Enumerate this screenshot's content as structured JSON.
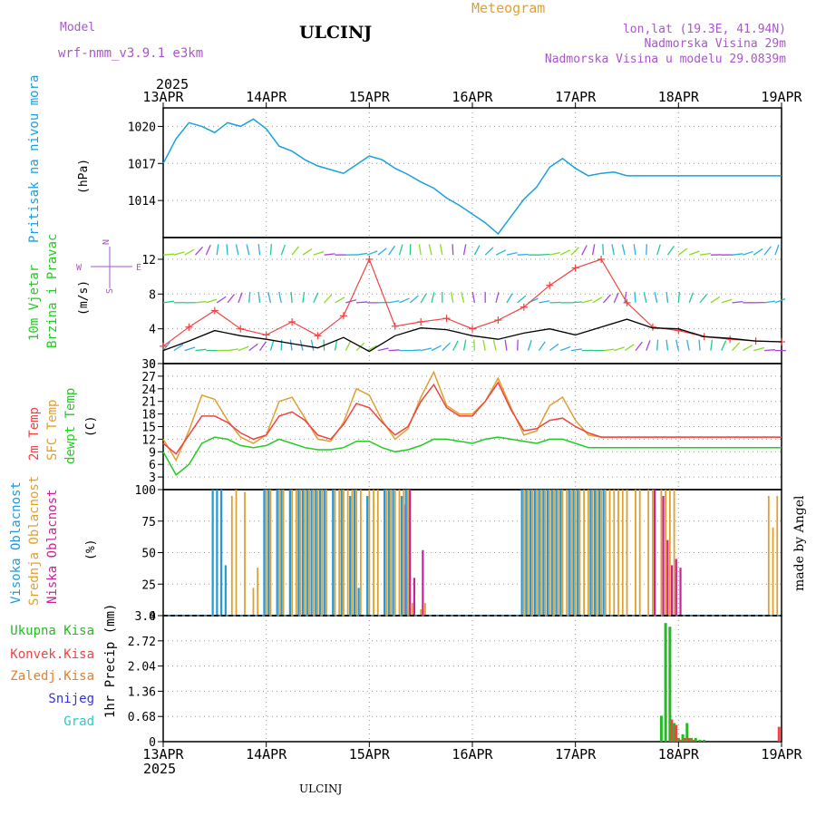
{
  "header": {
    "model_label": "Model",
    "model_name": "wrf-nmm_v3.9.1 e3km",
    "station": "ULCINJ",
    "meteogram": "Meteogram",
    "lonlat": "lon,lat (19.3E, 41.94N)",
    "elevation": "Nadmorska Visina 29m",
    "model_elevation": "Nadmorska Visina u modelu 29.0839m",
    "year_top": "2025",
    "year_bottom": "2025",
    "footer_station": "ULCINJ",
    "watermark": "made by Angel"
  },
  "colors": {
    "pressure": "#1aa0e0",
    "wind_speed": "#000000",
    "wind_gust": "#ee4444",
    "temp2m": "#ee4444",
    "sfc_temp": "#e0a030",
    "dewpt": "#22cc22",
    "cloud_high": "#2299dd",
    "cloud_mid": "#e0a030",
    "cloud_low": "#cc2299",
    "precip_total": "#22bb22",
    "precip_conv": "#ee4444",
    "precip_frz": "#e08030",
    "snow": "#3333dd",
    "hail": "#22cccc",
    "label_purple": "#aa55cc",
    "label_orange": "#e0a030"
  },
  "x_dates": [
    "13APR",
    "14APR",
    "15APR",
    "16APR",
    "17APR",
    "18APR",
    "19APR"
  ],
  "panel_labels": {
    "pressure": [
      "Pritisak na nivou mora"
    ],
    "pressure_unit": "(hPa)",
    "wind": [
      "10m Vjetar",
      "Brzina i Pravac"
    ],
    "wind_unit": "(m/s)",
    "compass": "N",
    "compass_w": "W",
    "compass_e": "E",
    "compass_s": "S",
    "temp": [
      "2m Temp",
      "SFC Temp",
      "dewpt Temp"
    ],
    "temp_unit": "(C)",
    "cloud": [
      "Visoka Oblacnost",
      "Srednja Oblacnost",
      "Niska Oblacnost"
    ],
    "cloud_unit": "(%)",
    "precip_unit": "1hr Precip (mm)",
    "precip_legend": [
      "Ukupna Kisa",
      "Konvek.Kisa",
      "Zaledj.Kisa",
      "Snijeg",
      "Grad"
    ]
  },
  "chart_data": [
    {
      "type": "line",
      "name": "pressure",
      "x": [
        0,
        3,
        6,
        9,
        12,
        15,
        18,
        21,
        24,
        27,
        30,
        33,
        36,
        39,
        42,
        45,
        48,
        51,
        54,
        57,
        60,
        63,
        66,
        69,
        72,
        75,
        78,
        81,
        84,
        87,
        90,
        93,
        96,
        99,
        102,
        105,
        108,
        111,
        114,
        117,
        120,
        123,
        126,
        129,
        132,
        135,
        138,
        141,
        144
      ],
      "series": [
        {
          "name": "Pritisak na nivou mora",
          "values": [
            1017,
            1019,
            1020.3,
            1020,
            1019.5,
            1020.3,
            1020,
            1020.6,
            1019.8,
            1018.4,
            1018,
            1017.3,
            1016.8,
            1016.5,
            1016.2,
            1016.9,
            1017.6,
            1017.3,
            1016.6,
            1016.1,
            1015.5,
            1015,
            1014.2,
            1013.6,
            1012.9,
            1012.2,
            1011.3,
            1012.7,
            1014.1,
            1015.1,
            1016.7,
            1017.4,
            1016.6,
            1016.0,
            1016.2,
            1016.3,
            1016.0,
            1016.0,
            1016.0,
            1016.0,
            1016.0,
            1016.0,
            1016.0,
            1016.0,
            1016.0,
            1016.0,
            1016.0,
            1016.0,
            1016.0
          ]
        }
      ],
      "yticks": [
        1014,
        1017,
        1020
      ],
      "ylim": [
        1011,
        1021.5
      ],
      "ylabel": "(hPa)"
    },
    {
      "type": "line",
      "name": "wind",
      "x": [
        0,
        6,
        12,
        18,
        24,
        30,
        36,
        42,
        48,
        54,
        60,
        66,
        72,
        78,
        84,
        90,
        96,
        102,
        108,
        114,
        120,
        126,
        132,
        138,
        144
      ],
      "series": [
        {
          "name": "speed",
          "values": [
            1.5,
            2.6,
            3.8,
            3.2,
            2.8,
            2.3,
            1.8,
            3.0,
            1.4,
            3.2,
            4.1,
            3.9,
            3.2,
            2.8,
            3.5,
            4.0,
            3.3,
            4.2,
            5.1,
            4.1,
            4.0,
            3.1,
            2.9,
            2.6,
            2.5
          ]
        },
        {
          "name": "gust",
          "values": [
            2.0,
            4.2,
            6.1,
            4.0,
            3.3,
            4.8,
            3.2,
            5.5,
            12.0,
            4.3,
            4.8,
            5.2,
            4.0,
            5.0,
            6.5,
            9.0,
            11.0,
            12.0,
            7.0,
            4.2,
            3.8,
            3.1,
            2.8,
            2.6,
            2.5
          ]
        }
      ],
      "yticks": [
        0,
        4,
        8,
        12
      ],
      "ylim": [
        0,
        14.5
      ],
      "ylabel": "(m/s)"
    },
    {
      "type": "line",
      "name": "temperature",
      "x": [
        0,
        3,
        6,
        9,
        12,
        15,
        18,
        21,
        24,
        27,
        30,
        33,
        36,
        39,
        42,
        45,
        48,
        51,
        54,
        57,
        60,
        63,
        66,
        69,
        72,
        75,
        78,
        81,
        84,
        87,
        90,
        93,
        96,
        99,
        102,
        105,
        108,
        111,
        114,
        117,
        120,
        123,
        126,
        129,
        132,
        135,
        138,
        141,
        144
      ],
      "series": [
        {
          "name": "2m Temp",
          "values": [
            11,
            8.5,
            13,
            17.5,
            17.5,
            16,
            13.5,
            12,
            13,
            17.5,
            18.5,
            16.5,
            13,
            12,
            15.5,
            20.5,
            19.5,
            16,
            13,
            15,
            21,
            25,
            19.5,
            17.5,
            17.5,
            21,
            25.5,
            19,
            14,
            14.5,
            16.5,
            17,
            15,
            13.5,
            12.5,
            12.5,
            12.5,
            12.5,
            12.5,
            12.5,
            12.5,
            12.5,
            12.5,
            12.5,
            12.5,
            12.5,
            12.5,
            12.5,
            12.5
          ]
        },
        {
          "name": "SFC Temp",
          "values": [
            12,
            7,
            14,
            22.5,
            21.5,
            16.5,
            12.5,
            11,
            13,
            21,
            22,
            17,
            12,
            11.5,
            16,
            24,
            22.5,
            16.5,
            12,
            14.5,
            22,
            28,
            20,
            18,
            18,
            21,
            26.5,
            19.5,
            13,
            14,
            20,
            22,
            16.5,
            13,
            12.5,
            12.5,
            12.5,
            12.5,
            12.5,
            12.5,
            12.5,
            12.5,
            12.5,
            12.5,
            12.5,
            12.5,
            12.5,
            12.5,
            12.5
          ]
        },
        {
          "name": "dewpt Temp",
          "values": [
            9,
            3.5,
            6,
            11,
            12.5,
            12,
            10.5,
            10,
            10.5,
            12,
            11,
            10,
            9.5,
            9.5,
            10,
            11.5,
            11.5,
            10,
            9,
            9.5,
            10.5,
            12,
            12,
            11.5,
            11,
            12,
            12.5,
            12,
            11.5,
            11,
            12,
            12,
            11,
            10,
            10,
            10,
            10,
            10,
            10,
            10,
            10,
            10,
            10,
            10,
            10,
            10,
            10,
            10,
            10
          ]
        }
      ],
      "yticks": [
        3,
        6,
        9,
        12,
        15,
        18,
        21,
        24,
        27,
        30
      ],
      "ylim": [
        0,
        30
      ],
      "ylabel": "(C)"
    },
    {
      "type": "bar",
      "name": "cloud",
      "x_hours": [
        12,
        13,
        14,
        15,
        16,
        17,
        19,
        21,
        22,
        23,
        24,
        25,
        27,
        28,
        30,
        31,
        32,
        33,
        34,
        35,
        36,
        37,
        38,
        40,
        41,
        42,
        43,
        44,
        45,
        46,
        48,
        49,
        50,
        52,
        53,
        54,
        55,
        56,
        57,
        58,
        60,
        61,
        65,
        69,
        84,
        85,
        86,
        87,
        88,
        89,
        90,
        91,
        92,
        93,
        94,
        95,
        96,
        97,
        98,
        99,
        100,
        101,
        102,
        103,
        104,
        105,
        106,
        107,
        108,
        110,
        111,
        113,
        114,
        116,
        117,
        118,
        119,
        120,
        122,
        125,
        141,
        142,
        143
      ],
      "series": [
        {
          "name": "Visoka Oblacnost",
          "values": [
            100,
            100,
            100,
            40,
            0,
            0,
            0,
            0,
            0,
            0,
            100,
            100,
            100,
            100,
            100,
            0,
            100,
            100,
            100,
            100,
            100,
            100,
            100,
            100,
            0,
            100,
            0,
            95,
            100,
            22,
            95,
            0,
            0,
            100,
            100,
            100,
            0,
            95,
            100,
            0,
            0,
            0,
            0,
            0,
            100,
            100,
            100,
            100,
            100,
            100,
            100,
            100,
            100,
            100,
            0,
            100,
            100,
            100,
            0,
            0,
            100,
            100,
            100,
            100,
            0,
            0,
            0,
            0,
            0,
            0,
            0,
            0,
            0,
            0,
            0,
            0,
            0,
            0,
            0,
            0,
            0,
            0,
            0
          ]
        },
        {
          "name": "Srednja Oblacnost",
          "values": [
            0,
            0,
            0,
            0,
            95,
            100,
            98,
            22,
            38,
            0,
            100,
            100,
            100,
            100,
            100,
            100,
            100,
            100,
            100,
            100,
            100,
            100,
            100,
            100,
            100,
            100,
            100,
            100,
            100,
            100,
            100,
            100,
            100,
            100,
            100,
            100,
            100,
            100,
            100,
            10,
            5,
            10,
            0,
            0,
            100,
            100,
            100,
            100,
            100,
            100,
            100,
            100,
            100,
            100,
            100,
            100,
            100,
            100,
            100,
            100,
            100,
            100,
            100,
            100,
            100,
            100,
            100,
            100,
            100,
            100,
            100,
            100,
            100,
            100,
            100,
            100,
            100,
            0,
            0,
            0,
            95,
            70,
            95
          ]
        },
        {
          "name": "Niska Oblacnost",
          "values": [
            0,
            0,
            0,
            0,
            0,
            0,
            0,
            0,
            0,
            0,
            0,
            0,
            0,
            0,
            0,
            0,
            0,
            0,
            0,
            0,
            0,
            0,
            0,
            0,
            0,
            0,
            0,
            0,
            0,
            0,
            0,
            0,
            0,
            0,
            0,
            0,
            0,
            88,
            100,
            30,
            52,
            0,
            0,
            0,
            0,
            0,
            0,
            0,
            0,
            0,
            0,
            0,
            0,
            0,
            0,
            0,
            0,
            0,
            0,
            0,
            0,
            0,
            0,
            0,
            0,
            0,
            0,
            0,
            0,
            0,
            0,
            0,
            100,
            95,
            60,
            40,
            45,
            38,
            0,
            0,
            0,
            0,
            0
          ]
        }
      ],
      "yticks": [
        0,
        25,
        50,
        75,
        100
      ],
      "ylim": [
        0,
        100
      ],
      "ylabel": "(%)"
    },
    {
      "type": "bar",
      "name": "precipitation",
      "x_hours": [
        116,
        117,
        118,
        119,
        120,
        121,
        122,
        123,
        124,
        125,
        126,
        143
      ],
      "series": [
        {
          "name": "Ukupna Kisa",
          "values": [
            0.7,
            3.2,
            3.1,
            0.5,
            0.1,
            0.2,
            0.5,
            0.1,
            0.1,
            0.05,
            0.05,
            0
          ]
        },
        {
          "name": "Konvek.Kisa",
          "values": [
            0,
            0,
            0.6,
            0.45,
            0.05,
            0.1,
            0.1,
            0.05,
            0,
            0,
            0,
            0.4
          ]
        },
        {
          "name": "Zaledj.Kisa",
          "values": [
            0,
            0,
            0,
            0,
            0,
            0,
            0,
            0,
            0,
            0,
            0,
            0
          ]
        },
        {
          "name": "Snijeg",
          "values": [
            0,
            0,
            0,
            0,
            0,
            0,
            0,
            0,
            0,
            0,
            0,
            0
          ]
        },
        {
          "name": "Grad",
          "values": [
            0,
            0,
            0,
            0,
            0,
            0,
            0,
            0,
            0,
            0,
            0,
            0
          ]
        }
      ],
      "yticks": [
        0,
        0.68,
        1.36,
        2.04,
        2.72,
        3.4
      ],
      "ylim": [
        0,
        3.4
      ],
      "ylabel": "1hr Precip (mm)"
    }
  ]
}
